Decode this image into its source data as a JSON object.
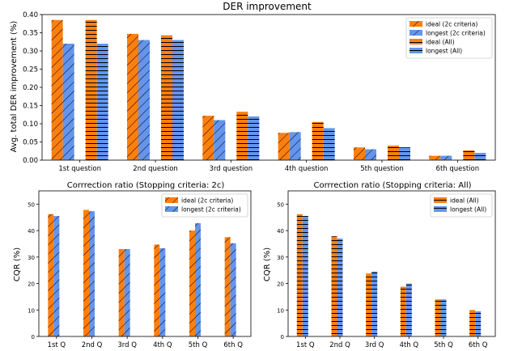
{
  "colors": {
    "ideal": "#ff7f0e",
    "longest": "#6495ed",
    "hatch": "#000000"
  },
  "chart_data": [
    {
      "type": "bar",
      "title": "DER improvement",
      "xlabel": "",
      "ylabel": "Avg. total DER improvement (%)",
      "ylim": [
        0,
        0.4
      ],
      "yticks": [
        "0.00",
        "0.05",
        "0.10",
        "0.15",
        "0.20",
        "0.25",
        "0.30",
        "0.35",
        "0.40"
      ],
      "categories": [
        "1st question",
        "2nd question",
        "3rd question",
        "4th question",
        "5th question",
        "6th question"
      ],
      "legend_position": "top-right",
      "series": [
        {
          "name": "ideal (2c criteria)",
          "values": [
            0.385,
            0.347,
            0.122,
            0.075,
            0.035,
            0.012
          ],
          "color": "ideal",
          "hatch": "diagonal"
        },
        {
          "name": "longest (2c criteria)",
          "values": [
            0.32,
            0.33,
            0.11,
            0.077,
            0.03,
            0.012
          ],
          "color": "longest",
          "hatch": "diagonal"
        },
        {
          "name": "ideal (All)",
          "values": [
            0.385,
            0.343,
            0.133,
            0.105,
            0.04,
            0.027
          ],
          "color": "ideal",
          "hatch": "horizontal"
        },
        {
          "name": "longest (All)",
          "values": [
            0.32,
            0.33,
            0.12,
            0.088,
            0.035,
            0.02
          ],
          "color": "longest",
          "hatch": "horizontal"
        }
      ]
    },
    {
      "type": "bar",
      "title": "Corrrection ratio (Stopping criteria: 2c)",
      "xlabel": "",
      "ylabel": "CQR (%)",
      "ylim": [
        0,
        55
      ],
      "yticks": [
        "0",
        "10",
        "20",
        "30",
        "40",
        "50"
      ],
      "categories": [
        "1st Q",
        "2nd Q",
        "3rd Q",
        "4th Q",
        "5th Q",
        "6th Q"
      ],
      "legend_position": "top-right",
      "series": [
        {
          "name": "ideal (2c criteria)",
          "values": [
            46.2,
            47.8,
            33.0,
            34.7,
            40.0,
            37.5
          ],
          "color": "ideal",
          "hatch": "diagonal"
        },
        {
          "name": "longest (2c criteria)",
          "values": [
            45.5,
            47.3,
            33.0,
            33.3,
            42.8,
            35.2
          ],
          "color": "longest",
          "hatch": "diagonal"
        }
      ]
    },
    {
      "type": "bar",
      "title": "Corrrection ratio (Stopping criteria: All)",
      "xlabel": "",
      "ylabel": "CQR (%)",
      "ylim": [
        0,
        55
      ],
      "yticks": [
        "0",
        "10",
        "20",
        "30",
        "40",
        "50"
      ],
      "categories": [
        "1st Q",
        "2nd Q",
        "3rd Q",
        "4th Q",
        "5th Q",
        "6th Q"
      ],
      "legend_position": "top-right",
      "series": [
        {
          "name": "ideal (All)",
          "values": [
            46.2,
            37.8,
            23.8,
            18.8,
            14.0,
            10.0
          ],
          "color": "ideal",
          "hatch": "horizontal"
        },
        {
          "name": "longest (All)",
          "values": [
            45.5,
            37.0,
            24.5,
            20.0,
            14.0,
            9.5
          ],
          "color": "longest",
          "hatch": "horizontal"
        }
      ]
    }
  ]
}
